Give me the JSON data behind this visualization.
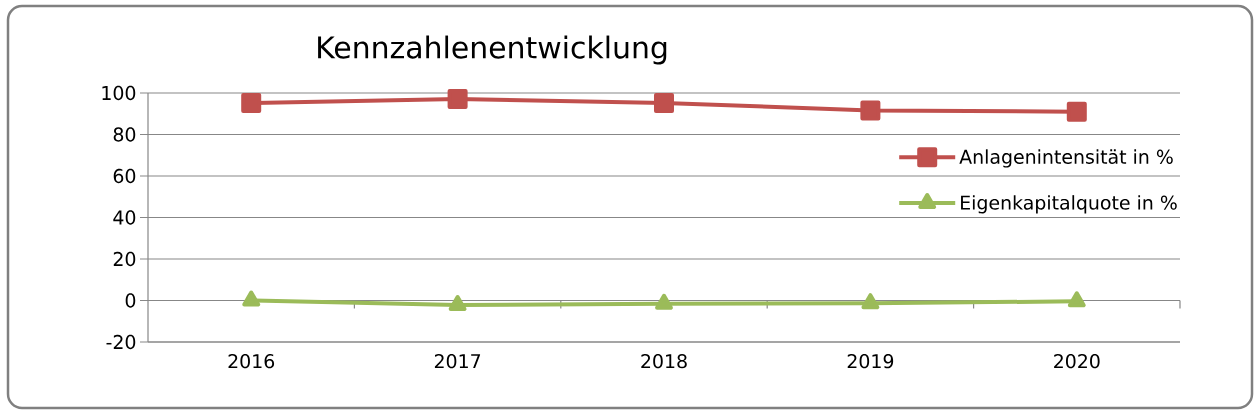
{
  "chart_data": {
    "type": "line",
    "title": "Kennzahlenentwicklung",
    "categories": [
      "2016",
      "2017",
      "2018",
      "2019",
      "2020"
    ],
    "series": [
      {
        "name": "Anlagenintensität in %",
        "color": "#c0504d",
        "marker": "square",
        "values": [
          95.2,
          97.1,
          95.2,
          91.6,
          91.0
        ]
      },
      {
        "name": "Eigenkapitalquote in %",
        "color": "#9bbb59",
        "marker": "triangle",
        "values": [
          0.0,
          -2.2,
          -1.6,
          -1.3,
          -0.4
        ]
      }
    ],
    "ylim": [
      -20,
      100
    ],
    "yticks": [
      -20,
      0,
      20,
      40,
      60,
      80,
      100
    ],
    "grid": "y",
    "legend": "right"
  }
}
